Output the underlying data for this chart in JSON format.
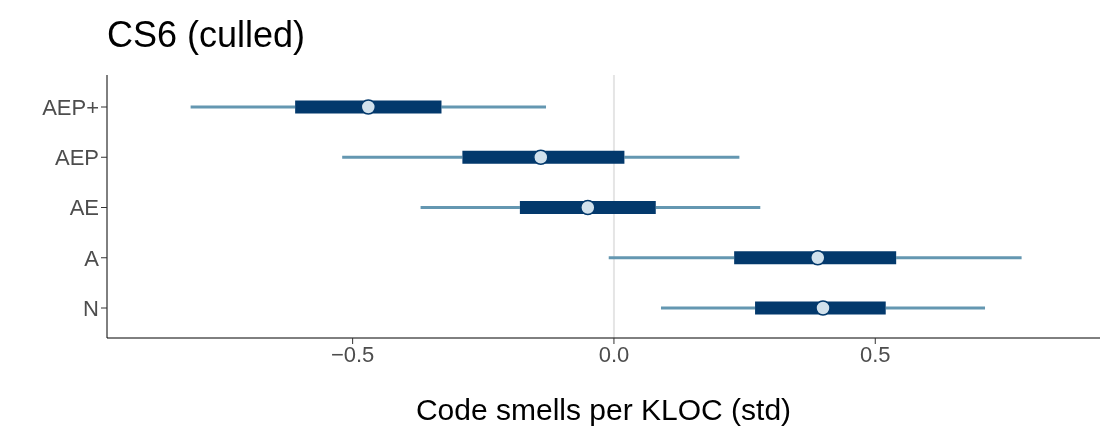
{
  "chart_data": {
    "type": "box",
    "orientation": "horizontal",
    "title": "CS6 (culled)",
    "xlabel": "Code smells per KLOC (std)",
    "categories": [
      "AEP+",
      "AEP",
      "AE",
      "A",
      "N"
    ],
    "color": "#03396c",
    "boxes": [
      {
        "low": -0.81,
        "q1": -0.61,
        "median": -0.47,
        "q3": -0.33,
        "high": -0.13
      },
      {
        "low": -0.52,
        "q1": -0.29,
        "median": -0.14,
        "q3": 0.02,
        "high": 0.24
      },
      {
        "low": -0.37,
        "q1": -0.18,
        "median": -0.05,
        "q3": 0.08,
        "high": 0.28
      },
      {
        "low": -0.01,
        "q1": 0.23,
        "median": 0.39,
        "q3": 0.54,
        "high": 0.78
      },
      {
        "low": 0.09,
        "q1": 0.27,
        "median": 0.4,
        "q3": 0.52,
        "high": 0.71
      }
    ],
    "xlim": [
      -0.97,
      0.93
    ],
    "xticks": [
      {
        "value": -0.5,
        "label": "−0.5"
      },
      {
        "value": 0,
        "label": "0.0"
      },
      {
        "value": 0.5,
        "label": "0.5"
      }
    ],
    "ref_lines": [
      {
        "axis": "x",
        "value": 0,
        "color": "#e5e5e5"
      }
    ],
    "grid": false,
    "legend": false
  }
}
